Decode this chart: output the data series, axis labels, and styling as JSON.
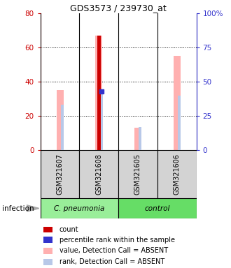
{
  "title": "GDS3573 / 239730_at",
  "samples": [
    "GSM321607",
    "GSM321608",
    "GSM321605",
    "GSM321606"
  ],
  "count_values": [
    0,
    67,
    0,
    0
  ],
  "count_color": "#cc0000",
  "percentile_rank_values": [
    null,
    43,
    null,
    null
  ],
  "percentile_rank_color": "#3333cc",
  "value_absent_values": [
    35,
    67,
    13,
    55
  ],
  "value_absent_color": "#ffb0b0",
  "rank_absent_values": [
    33,
    43,
    17,
    40
  ],
  "rank_absent_color": "#b8c8e8",
  "ylim_left": [
    0,
    80
  ],
  "ylim_right": [
    0,
    100
  ],
  "yticks_left": [
    0,
    20,
    40,
    60,
    80
  ],
  "yticks_right": [
    0,
    25,
    50,
    75,
    100
  ],
  "ytick_labels_left": [
    "0",
    "20",
    "40",
    "60",
    "80"
  ],
  "ytick_labels_right": [
    "0",
    "25",
    "50",
    "75",
    "100%"
  ],
  "left_axis_color": "#cc0000",
  "right_axis_color": "#3333cc",
  "sample_box_color": "#d3d3d3",
  "group_pneumonia_color": "#99ee99",
  "group_control_color": "#66dd66",
  "legend_items": [
    {
      "label": "count",
      "color": "#cc0000"
    },
    {
      "label": "percentile rank within the sample",
      "color": "#3333cc"
    },
    {
      "label": "value, Detection Call = ABSENT",
      "color": "#ffb0b0"
    },
    {
      "label": "rank, Detection Call = ABSENT",
      "color": "#b8c8e8"
    }
  ]
}
